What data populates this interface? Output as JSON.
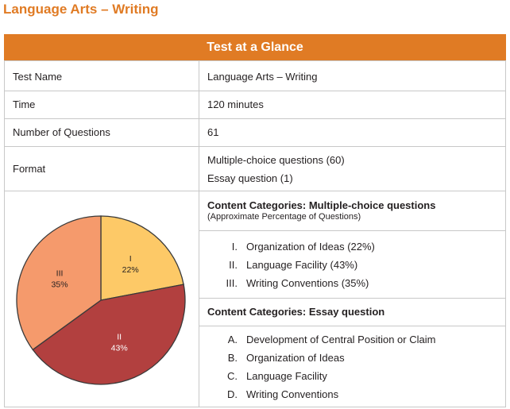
{
  "header": {
    "title": "Language Arts – Writing"
  },
  "table": {
    "title": "Test at a Glance",
    "rows": [
      [
        "Test Name",
        "Language Arts – Writing"
      ],
      [
        "Time",
        "120 minutes"
      ],
      [
        "Number of Questions",
        "61"
      ],
      [
        "Format",
        [
          "Multiple-choice questions (60)",
          "Essay question (1)"
        ]
      ]
    ]
  },
  "chart_data": {
    "type": "pie",
    "categories": [
      "I",
      "II",
      "III"
    ],
    "values": [
      22,
      43,
      35
    ],
    "value_labels": [
      "22%",
      "43%",
      "35%"
    ],
    "colors": [
      "#fdc967",
      "#b2403f",
      "#f59a6c"
    ]
  },
  "content": {
    "multiple_choice": {
      "title": "Content Categories: Multiple-choice questions",
      "subtitle": "(Approximate Percentage of Questions)",
      "items": [
        {
          "marker": "I.",
          "text": "Organization of Ideas (22%)"
        },
        {
          "marker": "II.",
          "text": "Language Facility (43%)"
        },
        {
          "marker": "III.",
          "text": "Writing Conventions (35%)"
        }
      ]
    },
    "essay": {
      "title": "Content Categories: Essay question",
      "items": [
        {
          "marker": "A.",
          "text": "Development of Central Position or Claim"
        },
        {
          "marker": "B.",
          "text": "Organization of Ideas"
        },
        {
          "marker": "C.",
          "text": "Language Facility"
        },
        {
          "marker": "D.",
          "text": "Writing Conventions"
        }
      ]
    }
  }
}
